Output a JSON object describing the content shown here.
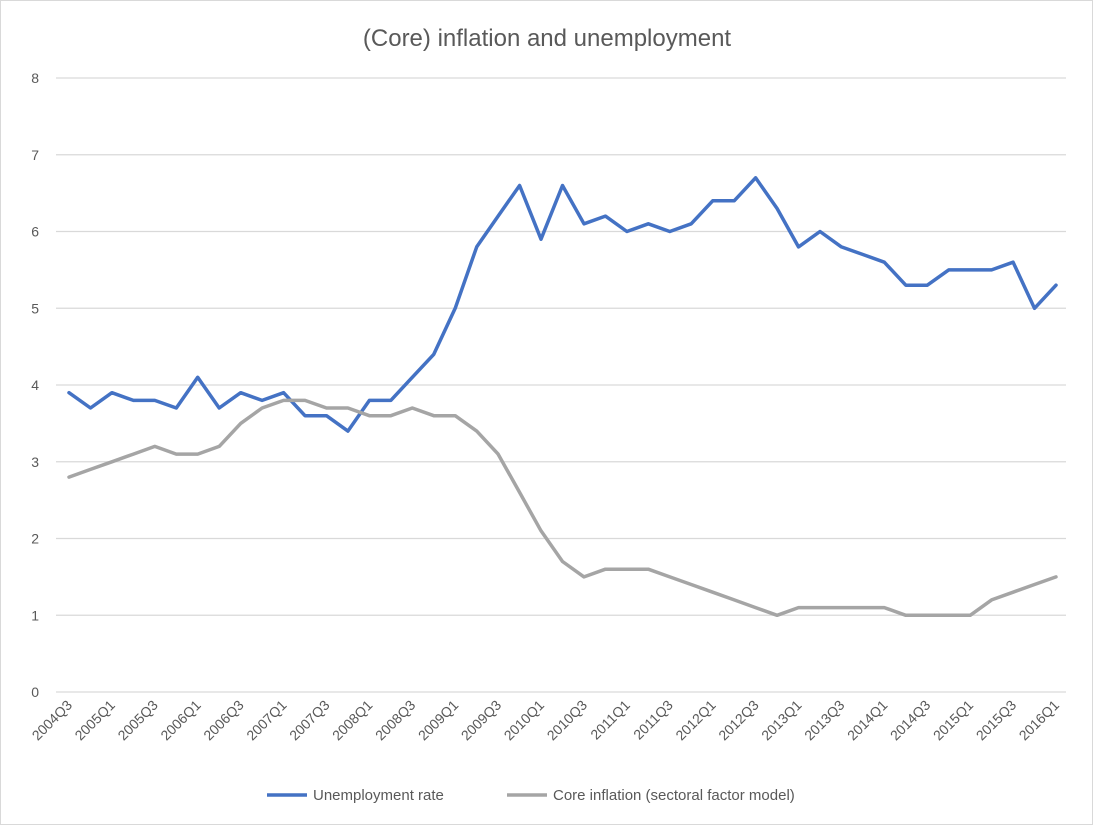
{
  "chart_data": {
    "type": "line",
    "title": "(Core) inflation and unemployment",
    "xlabel": "",
    "ylabel": "",
    "ylim": [
      0,
      8
    ],
    "yticks": [
      0,
      1,
      2,
      3,
      4,
      5,
      6,
      7,
      8
    ],
    "grid": true,
    "legend_position": "bottom",
    "x": [
      "2004Q3",
      "2004Q4",
      "2005Q1",
      "2005Q2",
      "2005Q3",
      "2005Q4",
      "2006Q1",
      "2006Q2",
      "2006Q3",
      "2006Q4",
      "2007Q1",
      "2007Q2",
      "2007Q3",
      "2007Q4",
      "2008Q1",
      "2008Q2",
      "2008Q3",
      "2008Q4",
      "2009Q1",
      "2009Q2",
      "2009Q3",
      "2009Q4",
      "2010Q1",
      "2010Q2",
      "2010Q3",
      "2010Q4",
      "2011Q1",
      "2011Q2",
      "2011Q3",
      "2011Q4",
      "2012Q1",
      "2012Q2",
      "2012Q3",
      "2012Q4",
      "2013Q1",
      "2013Q2",
      "2013Q3",
      "2013Q4",
      "2014Q1",
      "2014Q2",
      "2014Q3",
      "2014Q4",
      "2015Q1",
      "2015Q2",
      "2015Q3",
      "2015Q4",
      "2016Q1"
    ],
    "xtick_labels": [
      "2004Q3",
      "2005Q1",
      "2005Q3",
      "2006Q1",
      "2006Q3",
      "2007Q1",
      "2007Q3",
      "2008Q1",
      "2008Q3",
      "2009Q1",
      "2009Q3",
      "2010Q1",
      "2010Q3",
      "2011Q1",
      "2011Q3",
      "2012Q1",
      "2012Q3",
      "2013Q1",
      "2013Q3",
      "2014Q1",
      "2014Q3",
      "2015Q1",
      "2015Q3",
      "2016Q1"
    ],
    "series": [
      {
        "name": "Unemployment rate",
        "color": "#4472c4",
        "values": [
          3.9,
          3.7,
          3.9,
          3.8,
          3.8,
          3.7,
          4.1,
          3.7,
          3.9,
          3.8,
          3.9,
          3.6,
          3.6,
          3.4,
          3.8,
          3.8,
          4.1,
          4.4,
          5.0,
          5.8,
          6.2,
          6.6,
          5.9,
          6.6,
          6.1,
          6.2,
          6.0,
          6.1,
          6.0,
          6.1,
          6.4,
          6.4,
          6.7,
          6.3,
          5.8,
          6.0,
          5.8,
          5.7,
          5.6,
          5.3,
          5.3,
          5.5,
          5.5,
          5.5,
          5.6,
          5.0,
          5.3
        ]
      },
      {
        "name": "Core inflation (sectoral factor model)",
        "color": "#a5a5a5",
        "values": [
          2.8,
          2.9,
          3.0,
          3.1,
          3.2,
          3.1,
          3.1,
          3.2,
          3.5,
          3.7,
          3.8,
          3.8,
          3.7,
          3.7,
          3.6,
          3.6,
          3.7,
          3.6,
          3.6,
          3.4,
          3.1,
          2.6,
          2.1,
          1.7,
          1.5,
          1.6,
          1.6,
          1.6,
          1.5,
          1.4,
          1.3,
          1.2,
          1.1,
          1.0,
          1.1,
          1.1,
          1.1,
          1.1,
          1.1,
          1.0,
          1.0,
          1.0,
          1.0,
          1.2,
          1.3,
          1.4,
          1.5
        ]
      }
    ]
  }
}
